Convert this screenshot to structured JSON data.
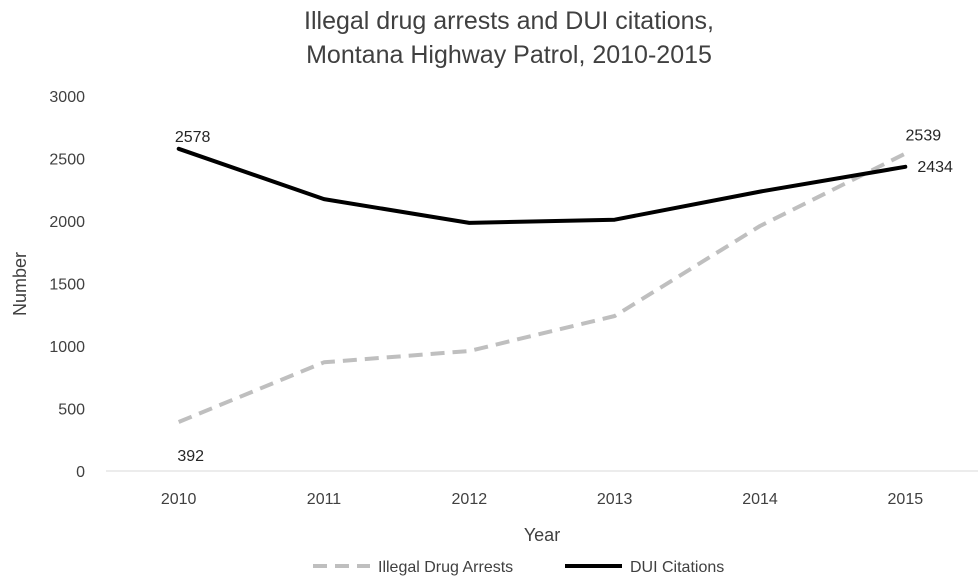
{
  "chart_data": {
    "type": "line",
    "title_lines": [
      "Illegal drug arrests and DUI citations,",
      "Montana Highway Patrol, 2010-2015"
    ],
    "xlabel": "Year",
    "ylabel": "Number",
    "categories": [
      "2010",
      "2011",
      "2012",
      "2013",
      "2014",
      "2015"
    ],
    "ylim": [
      0,
      3000
    ],
    "yticks": [
      0,
      500,
      1000,
      1500,
      2000,
      2500,
      3000
    ],
    "grid": false,
    "legend_position": "bottom",
    "series": [
      {
        "name": "Illegal Drug Arrests",
        "values": [
          392,
          870,
          960,
          1240,
          1960,
          2539
        ],
        "color": "#bfbfbf",
        "style": "dashed",
        "data_labels": {
          "0": "392",
          "5": "2539"
        }
      },
      {
        "name": "DUI Citations",
        "values": [
          2578,
          2175,
          1985,
          2010,
          2235,
          2434
        ],
        "color": "#000000",
        "style": "solid",
        "data_labels": {
          "0": "2578",
          "5": "2434"
        }
      }
    ]
  }
}
